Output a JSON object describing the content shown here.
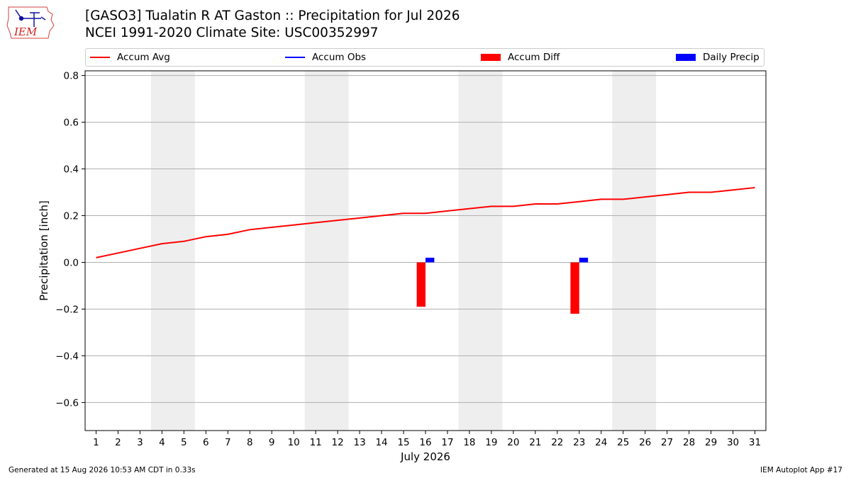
{
  "header": {
    "logo_text": "IEM",
    "title_line1": "[GASO3] Tualatin R  AT Gaston :: Precipitation for Jul 2026",
    "title_line2": "NCEI 1991-2020 Climate Site: USC00352997"
  },
  "legend": {
    "items": [
      {
        "label": "Accum Avg",
        "kind": "line",
        "color": "#ff0000"
      },
      {
        "label": "Accum Obs",
        "kind": "line",
        "color": "#0000ff"
      },
      {
        "label": "Accum Diff",
        "kind": "box",
        "color": "#ff0000"
      },
      {
        "label": "Daily Precip",
        "kind": "box",
        "color": "#0000ff"
      }
    ]
  },
  "footer": {
    "left": "Generated at 15 Aug 2026 10:53 AM CDT in 0.33s",
    "right": "IEM Autoplot App #17"
  },
  "chart_data": {
    "type": "bar",
    "xlabel": "July 2026",
    "ylabel": "Precipitation [inch]",
    "ylim": [
      -0.72,
      0.82
    ],
    "xlim": [
      0.5,
      31.5
    ],
    "yticks": [
      0.8,
      0.6,
      0.4,
      0.2,
      0.0,
      -0.2,
      -0.4,
      -0.6
    ],
    "ytick_labels": [
      "0.8",
      "0.6",
      "0.4",
      "0.2",
      "0.0",
      "−0.2",
      "−0.4",
      "−0.6"
    ],
    "x": [
      1,
      2,
      3,
      4,
      5,
      6,
      7,
      8,
      9,
      10,
      11,
      12,
      13,
      14,
      15,
      16,
      17,
      18,
      19,
      20,
      21,
      22,
      23,
      24,
      25,
      26,
      27,
      28,
      29,
      30,
      31
    ],
    "xtick_labels": [
      "1",
      "2",
      "3",
      "4",
      "5",
      "6",
      "7",
      "8",
      "9",
      "10",
      "11",
      "12",
      "13",
      "14",
      "15",
      "16",
      "17",
      "18",
      "19",
      "20",
      "21",
      "22",
      "23",
      "24",
      "25",
      "26",
      "27",
      "28",
      "29",
      "30",
      "31"
    ],
    "grid": "horizontal",
    "weekend_shading": [
      [
        3.5,
        5.5
      ],
      [
        10.5,
        12.5
      ],
      [
        17.5,
        19.5
      ],
      [
        24.5,
        26.5
      ]
    ],
    "shade_color": "#eeeeee",
    "series": [
      {
        "name": "Accum Avg",
        "kind": "line",
        "color": "#ff0000",
        "values": [
          0.02,
          0.04,
          0.06,
          0.08,
          0.09,
          0.11,
          0.12,
          0.14,
          0.15,
          0.16,
          0.17,
          0.18,
          0.19,
          0.2,
          0.21,
          0.21,
          0.22,
          0.23,
          0.24,
          0.24,
          0.25,
          0.25,
          0.26,
          0.27,
          0.27,
          0.28,
          0.29,
          0.3,
          0.3,
          0.31,
          0.32
        ]
      },
      {
        "name": "Accum Diff",
        "kind": "bar",
        "color": "#ff0000",
        "points": [
          {
            "x": 16,
            "value": -0.19
          },
          {
            "x": 23,
            "value": -0.22
          }
        ]
      },
      {
        "name": "Daily Precip",
        "kind": "bar",
        "color": "#0000ff",
        "points": [
          {
            "x": 16,
            "value": 0.02
          },
          {
            "x": 23,
            "value": 0.02
          }
        ]
      }
    ]
  }
}
